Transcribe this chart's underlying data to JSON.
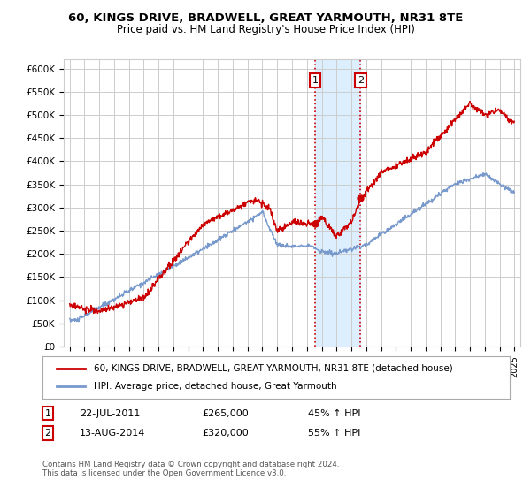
{
  "title": "60, KINGS DRIVE, BRADWELL, GREAT YARMOUTH, NR31 8TE",
  "subtitle": "Price paid vs. HM Land Registry's House Price Index (HPI)",
  "ylabel_ticks": [
    "£0",
    "£50K",
    "£100K",
    "£150K",
    "£200K",
    "£250K",
    "£300K",
    "£350K",
    "£400K",
    "£450K",
    "£500K",
    "£550K",
    "£600K"
  ],
  "ytick_values": [
    0,
    50000,
    100000,
    150000,
    200000,
    250000,
    300000,
    350000,
    400000,
    450000,
    500000,
    550000,
    600000
  ],
  "ylim": [
    0,
    620000
  ],
  "legend_line1": "60, KINGS DRIVE, BRADWELL, GREAT YARMOUTH, NR31 8TE (detached house)",
  "legend_line2": "HPI: Average price, detached house, Great Yarmouth",
  "annotation1_label": "1",
  "annotation1_date": "22-JUL-2011",
  "annotation1_price": "£265,000",
  "annotation1_hpi": "45% ↑ HPI",
  "annotation2_label": "2",
  "annotation2_date": "13-AUG-2014",
  "annotation2_price": "£320,000",
  "annotation2_hpi": "55% ↑ HPI",
  "footnote": "Contains HM Land Registry data © Crown copyright and database right 2024.\nThis data is licensed under the Open Government Licence v3.0.",
  "red_color": "#cc0000",
  "blue_color": "#7799cc",
  "shade_color": "#ddeeff",
  "vline_color": "#cc0000",
  "background_color": "#ffffff",
  "grid_color": "#cccccc",
  "sale1_x": 2011.55,
  "sale1_y": 265000,
  "sale2_x": 2014.62,
  "sale2_y": 320000,
  "xlim_left": 1994.6,
  "xlim_right": 2025.4
}
